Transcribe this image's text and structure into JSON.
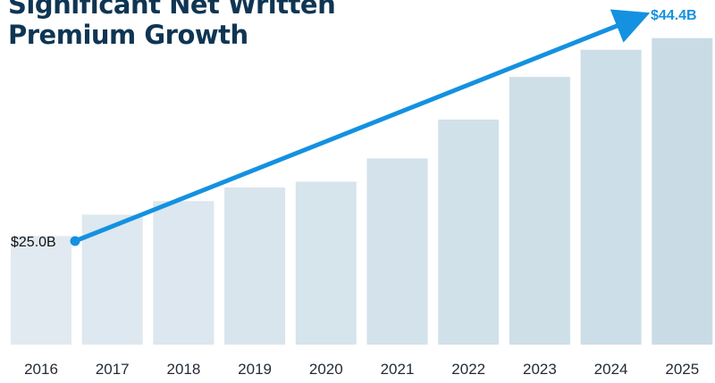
{
  "title": {
    "line1": "Significant Net Written",
    "line2": "Premium Growth"
  },
  "colors": {
    "title": "#0f3553",
    "trend_line": "#1491e0",
    "bar_light": "#e1eaf1",
    "bar_dark": "#c9dce6",
    "tick_text": "#1f2b36"
  },
  "chart_data": {
    "type": "bar",
    "categories": [
      "2016",
      "2017",
      "2018",
      "2019",
      "2020",
      "2021",
      "2022",
      "2023",
      "2024",
      "2025"
    ],
    "values": [
      25.0,
      26.1,
      26.8,
      27.5,
      27.8,
      29.0,
      31.0,
      33.2,
      34.6,
      35.2
    ],
    "value_unit": "relative",
    "trend": {
      "start_label": "$25.0B",
      "end_label": "$44.4B",
      "start_value": 25.0,
      "end_value": 44.4
    },
    "grid": false,
    "legend": "none"
  }
}
